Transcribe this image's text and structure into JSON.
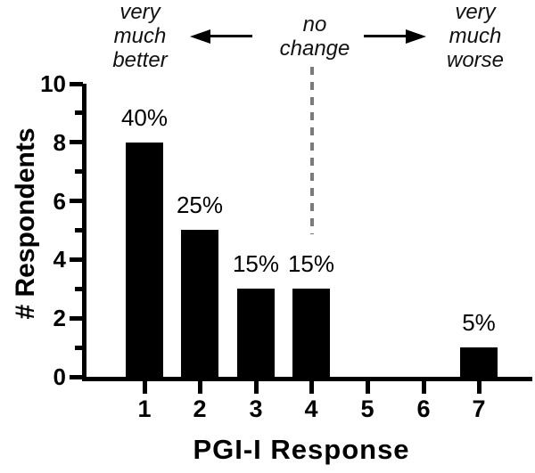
{
  "chart_data": {
    "type": "bar",
    "title": "",
    "xlabel": "PGI-I Response",
    "ylabel": "# Respondents",
    "categories": [
      "1",
      "2",
      "3",
      "4",
      "5",
      "6",
      "7"
    ],
    "values": [
      8,
      5,
      3,
      3,
      0,
      0,
      1
    ],
    "bar_labels": [
      "40%",
      "25%",
      "15%",
      "15%",
      "",
      "",
      "5%"
    ],
    "ylim": [
      0,
      10
    ],
    "y_major_ticks": [
      0,
      2,
      4,
      6,
      8,
      10
    ],
    "y_minor_ticks": [
      1,
      3,
      5,
      7,
      9
    ],
    "grid": false,
    "legend": "none",
    "bar_color": "#000000",
    "axis_color": "#000000",
    "annotations": {
      "left_label": "very\nmuch\nbetter",
      "center_label": "no\nchange",
      "right_label": "very\nmuch\nworse",
      "divider_at_category": "4",
      "divider_line_color": "#7b7b7b"
    }
  }
}
